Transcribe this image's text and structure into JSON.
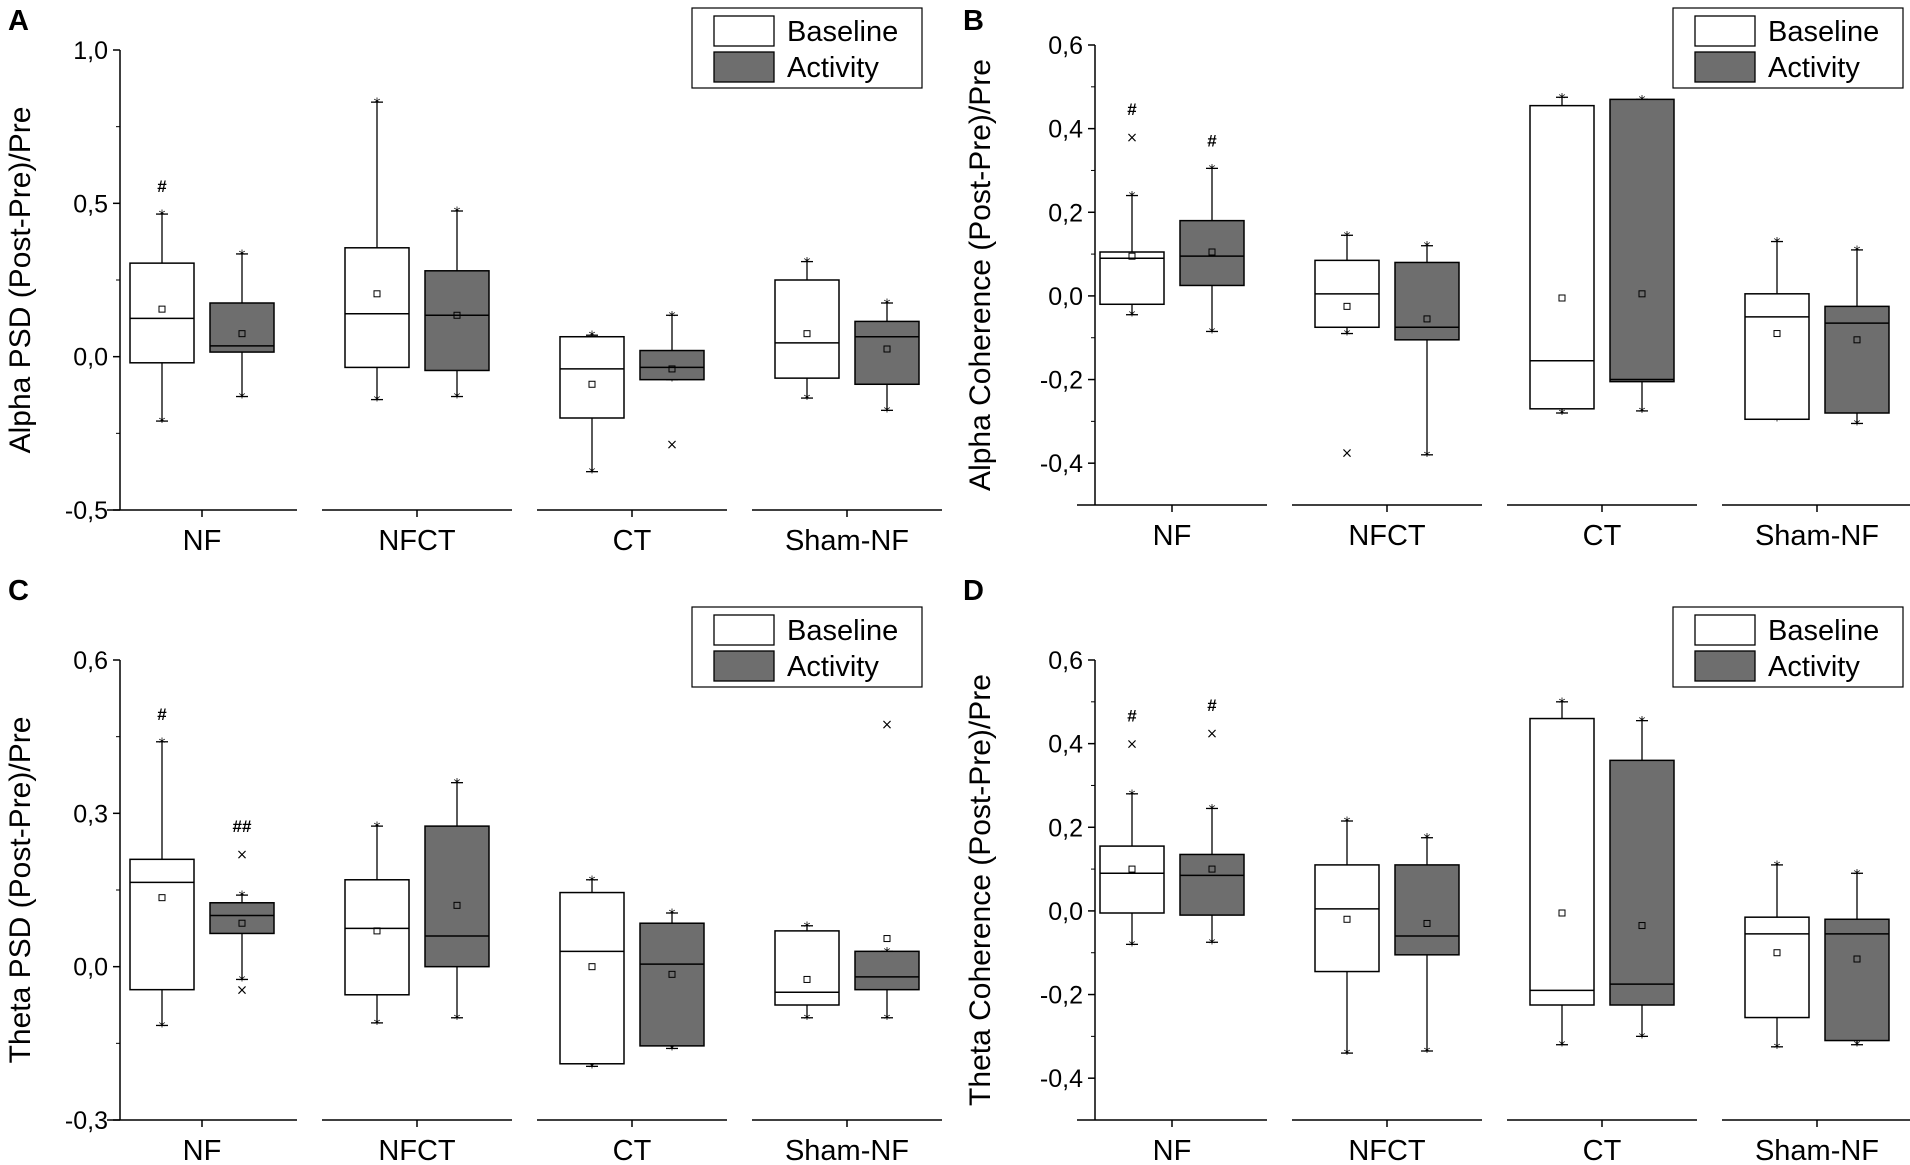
{
  "colors": {
    "baseline_fill": "#ffffff",
    "activity_fill": "#6e6e6e",
    "stroke": "#000000"
  },
  "chart_data": [
    {
      "panel": "A",
      "type": "box",
      "ylabel": "Alpha PSD (Post-Pre)/Pre",
      "ylim": [
        -0.5,
        1.0
      ],
      "yticks": [
        -0.5,
        0.0,
        0.5,
        1.0
      ],
      "ytick_labels": [
        "-0,5",
        "0,0",
        "0,5",
        "1,0"
      ],
      "categories": [
        "NF",
        "NFCT",
        "CT",
        "Sham-NF"
      ],
      "legend": [
        "Baseline",
        "Activity"
      ],
      "groups": [
        {
          "category": "NF",
          "series": "Baseline",
          "q1": -0.02,
          "median": 0.125,
          "q3": 0.305,
          "mean": 0.155,
          "whisker_low": -0.21,
          "whisker_high": 0.465,
          "outliers": [],
          "annotation": "#"
        },
        {
          "category": "NF",
          "series": "Activity",
          "q1": 0.015,
          "median": 0.035,
          "q3": 0.175,
          "mean": 0.075,
          "whisker_low": -0.13,
          "whisker_high": 0.335,
          "outliers": [],
          "annotation": ""
        },
        {
          "category": "NFCT",
          "series": "Baseline",
          "q1": -0.035,
          "median": 0.14,
          "q3": 0.355,
          "mean": 0.205,
          "whisker_low": -0.14,
          "whisker_high": 0.83,
          "outliers": [],
          "annotation": ""
        },
        {
          "category": "NFCT",
          "series": "Activity",
          "q1": -0.045,
          "median": 0.135,
          "q3": 0.28,
          "mean": 0.135,
          "whisker_low": -0.13,
          "whisker_high": 0.475,
          "outliers": [],
          "annotation": ""
        },
        {
          "category": "CT",
          "series": "Baseline",
          "q1": -0.2,
          "median": -0.04,
          "q3": 0.065,
          "mean": -0.09,
          "whisker_low": -0.375,
          "whisker_high": 0.07,
          "outliers": [],
          "annotation": ""
        },
        {
          "category": "CT",
          "series": "Activity",
          "q1": -0.075,
          "median": -0.035,
          "q3": 0.02,
          "mean": -0.04,
          "whisker_low": -0.075,
          "whisker_high": 0.135,
          "outliers": [
            -0.285
          ],
          "annotation": ""
        },
        {
          "category": "Sham-NF",
          "series": "Baseline",
          "q1": -0.07,
          "median": 0.045,
          "q3": 0.25,
          "mean": 0.075,
          "whisker_low": -0.135,
          "whisker_high": 0.31,
          "outliers": [],
          "annotation": ""
        },
        {
          "category": "Sham-NF",
          "series": "Activity",
          "q1": -0.09,
          "median": 0.065,
          "q3": 0.115,
          "mean": 0.025,
          "whisker_low": -0.175,
          "whisker_high": 0.175,
          "outliers": [],
          "annotation": ""
        }
      ]
    },
    {
      "panel": "B",
      "type": "box",
      "ylabel": "Alpha Coherence (Post-Pre)/Pre",
      "ylim": [
        -0.5,
        0.6
      ],
      "yticks": [
        -0.4,
        -0.2,
        0.0,
        0.2,
        0.4,
        0.6
      ],
      "ytick_labels": [
        "-0,4",
        "-0,2",
        "0,0",
        "0,2",
        "0,4",
        "0,6"
      ],
      "categories": [
        "NF",
        "NFCT",
        "CT",
        "Sham-NF"
      ],
      "legend": [
        "Baseline",
        "Activity"
      ],
      "groups": [
        {
          "category": "NF",
          "series": "Baseline",
          "q1": -0.02,
          "median": 0.09,
          "q3": 0.105,
          "mean": 0.095,
          "whisker_low": -0.045,
          "whisker_high": 0.24,
          "outliers": [
            0.38
          ],
          "annotation": "#"
        },
        {
          "category": "NF",
          "series": "Activity",
          "q1": 0.025,
          "median": 0.095,
          "q3": 0.18,
          "mean": 0.105,
          "whisker_low": -0.085,
          "whisker_high": 0.305,
          "outliers": [],
          "annotation": "#"
        },
        {
          "category": "NFCT",
          "series": "Baseline",
          "q1": -0.075,
          "median": 0.005,
          "q3": 0.085,
          "mean": -0.025,
          "whisker_low": -0.09,
          "whisker_high": 0.145,
          "outliers": [
            -0.375
          ],
          "annotation": ""
        },
        {
          "category": "NFCT",
          "series": "Activity",
          "q1": -0.105,
          "median": -0.075,
          "q3": 0.08,
          "mean": -0.055,
          "whisker_low": -0.38,
          "whisker_high": 0.12,
          "outliers": [],
          "annotation": ""
        },
        {
          "category": "CT",
          "series": "Baseline",
          "q1": -0.27,
          "median": -0.155,
          "q3": 0.455,
          "mean": -0.005,
          "whisker_low": -0.28,
          "whisker_high": 0.475,
          "outliers": [],
          "annotation": ""
        },
        {
          "category": "CT",
          "series": "Activity",
          "q1": -0.205,
          "median": -0.2,
          "q3": 0.47,
          "mean": 0.005,
          "whisker_low": -0.275,
          "whisker_high": 0.47,
          "outliers": [],
          "annotation": ""
        },
        {
          "category": "Sham-NF",
          "series": "Baseline",
          "q1": -0.295,
          "median": -0.05,
          "q3": 0.005,
          "mean": -0.09,
          "whisker_low": -0.295,
          "whisker_high": 0.13,
          "outliers": [],
          "annotation": ""
        },
        {
          "category": "Sham-NF",
          "series": "Activity",
          "q1": -0.28,
          "median": -0.065,
          "q3": -0.025,
          "mean": -0.105,
          "whisker_low": -0.305,
          "whisker_high": 0.11,
          "outliers": [],
          "annotation": ""
        }
      ]
    },
    {
      "panel": "C",
      "type": "box",
      "ylabel": "Theta PSD (Post-Pre)/Pre",
      "ylim": [
        -0.3,
        0.6
      ],
      "yticks": [
        -0.3,
        0.0,
        0.3,
        0.6
      ],
      "ytick_labels": [
        "-0,3",
        "0,0",
        "0,3",
        "0,6"
      ],
      "categories": [
        "NF",
        "NFCT",
        "CT",
        "Sham-NF"
      ],
      "legend": [
        "Baseline",
        "Activity"
      ],
      "groups": [
        {
          "category": "NF",
          "series": "Baseline",
          "q1": -0.045,
          "median": 0.165,
          "q3": 0.21,
          "mean": 0.135,
          "whisker_low": -0.115,
          "whisker_high": 0.44,
          "outliers": [],
          "annotation": "#"
        },
        {
          "category": "NF",
          "series": "Activity",
          "q1": 0.065,
          "median": 0.1,
          "q3": 0.125,
          "mean": 0.085,
          "whisker_low": -0.025,
          "whisker_high": 0.14,
          "outliers": [
            0.22,
            -0.045
          ],
          "annotation": "##"
        },
        {
          "category": "NFCT",
          "series": "Baseline",
          "q1": -0.055,
          "median": 0.075,
          "q3": 0.17,
          "mean": 0.07,
          "whisker_low": -0.11,
          "whisker_high": 0.275,
          "outliers": [],
          "annotation": ""
        },
        {
          "category": "NFCT",
          "series": "Activity",
          "q1": 0.0,
          "median": 0.06,
          "q3": 0.275,
          "mean": 0.12,
          "whisker_low": -0.1,
          "whisker_high": 0.36,
          "outliers": [],
          "annotation": ""
        },
        {
          "category": "CT",
          "series": "Baseline",
          "q1": -0.19,
          "median": 0.03,
          "q3": 0.145,
          "mean": 0.0,
          "whisker_low": -0.195,
          "whisker_high": 0.17,
          "outliers": [],
          "annotation": ""
        },
        {
          "category": "CT",
          "series": "Activity",
          "q1": -0.155,
          "median": 0.005,
          "q3": 0.085,
          "mean": -0.015,
          "whisker_low": -0.16,
          "whisker_high": 0.105,
          "outliers": [],
          "annotation": ""
        },
        {
          "category": "Sham-NF",
          "series": "Baseline",
          "q1": -0.075,
          "median": -0.05,
          "q3": 0.07,
          "mean": -0.025,
          "whisker_low": -0.1,
          "whisker_high": 0.08,
          "outliers": [],
          "annotation": ""
        },
        {
          "category": "Sham-NF",
          "series": "Activity",
          "q1": -0.045,
          "median": -0.02,
          "q3": 0.03,
          "mean": 0.055,
          "whisker_low": -0.1,
          "whisker_high": 0.03,
          "outliers": [
            0.475
          ],
          "annotation": ""
        }
      ]
    },
    {
      "panel": "D",
      "type": "box",
      "ylabel": "Theta Coherence (Post-Pre)/Pre",
      "ylim": [
        -0.5,
        0.6
      ],
      "yticks": [
        -0.4,
        -0.2,
        0.0,
        0.2,
        0.4,
        0.6
      ],
      "ytick_labels": [
        "-0,4",
        "-0,2",
        "0,0",
        "0,2",
        "0,4",
        "0,6"
      ],
      "categories": [
        "NF",
        "NFCT",
        "CT",
        "Sham-NF"
      ],
      "legend": [
        "Baseline",
        "Activity"
      ],
      "groups": [
        {
          "category": "NF",
          "series": "Baseline",
          "q1": -0.005,
          "median": 0.09,
          "q3": 0.155,
          "mean": 0.1,
          "whisker_low": -0.08,
          "whisker_high": 0.28,
          "outliers": [
            0.4
          ],
          "annotation": "#"
        },
        {
          "category": "NF",
          "series": "Activity",
          "q1": -0.01,
          "median": 0.085,
          "q3": 0.135,
          "mean": 0.1,
          "whisker_low": -0.075,
          "whisker_high": 0.245,
          "outliers": [
            0.425
          ],
          "annotation": "#"
        },
        {
          "category": "NFCT",
          "series": "Baseline",
          "q1": -0.145,
          "median": 0.005,
          "q3": 0.11,
          "mean": -0.02,
          "whisker_low": -0.34,
          "whisker_high": 0.215,
          "outliers": [],
          "annotation": ""
        },
        {
          "category": "NFCT",
          "series": "Activity",
          "q1": -0.105,
          "median": -0.06,
          "q3": 0.11,
          "mean": -0.03,
          "whisker_low": -0.335,
          "whisker_high": 0.175,
          "outliers": [],
          "annotation": ""
        },
        {
          "category": "CT",
          "series": "Baseline",
          "q1": -0.225,
          "median": -0.19,
          "q3": 0.46,
          "mean": -0.005,
          "whisker_low": -0.32,
          "whisker_high": 0.5,
          "outliers": [],
          "annotation": ""
        },
        {
          "category": "CT",
          "series": "Activity",
          "q1": -0.225,
          "median": -0.175,
          "q3": 0.36,
          "mean": -0.035,
          "whisker_low": -0.3,
          "whisker_high": 0.455,
          "outliers": [],
          "annotation": ""
        },
        {
          "category": "Sham-NF",
          "series": "Baseline",
          "q1": -0.255,
          "median": -0.055,
          "q3": -0.015,
          "mean": -0.1,
          "whisker_low": -0.325,
          "whisker_high": 0.11,
          "outliers": [],
          "annotation": ""
        },
        {
          "category": "Sham-NF",
          "series": "Activity",
          "q1": -0.31,
          "median": -0.055,
          "q3": -0.02,
          "mean": -0.115,
          "whisker_low": -0.32,
          "whisker_high": 0.09,
          "outliers": [],
          "annotation": ""
        }
      ]
    }
  ]
}
